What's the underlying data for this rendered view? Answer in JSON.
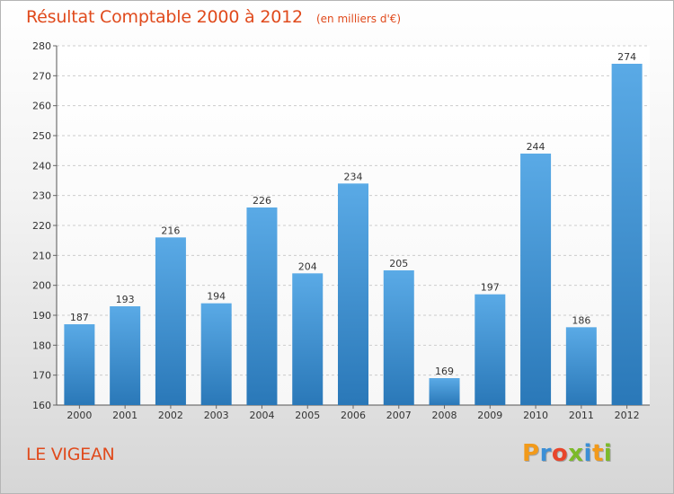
{
  "header": {
    "title": "Résultat Comptable 2000 à 2012",
    "subtitle": "(en milliers d'€)"
  },
  "footer": {
    "commune": "LE VIGEAN",
    "logo_text": "Proxiti",
    "logo_letters": [
      {
        "char": "P",
        "color": "#f29a1a"
      },
      {
        "char": "r",
        "color": "#3b8fd6"
      },
      {
        "char": "o",
        "color": "#e8452b"
      },
      {
        "char": "x",
        "color": "#7cba2a"
      },
      {
        "char": "i",
        "color": "#3b8fd6"
      },
      {
        "char": "t",
        "color": "#f29a1a"
      },
      {
        "char": "i",
        "color": "#7cba2a"
      }
    ]
  },
  "colors": {
    "accent": "#e04a1c",
    "bar_top": "#5aaae6",
    "bar_bottom": "#2a78b8",
    "grid": "#cccccc"
  },
  "chart_data": {
    "type": "bar",
    "title": "Résultat Comptable 2000 à 2012",
    "subtitle": "(en milliers d'€)",
    "xlabel": "",
    "ylabel": "",
    "categories": [
      "2000",
      "2001",
      "2002",
      "2003",
      "2004",
      "2005",
      "2006",
      "2007",
      "2008",
      "2009",
      "2010",
      "2011",
      "2012"
    ],
    "values": [
      187,
      193,
      216,
      194,
      226,
      204,
      234,
      205,
      169,
      197,
      244,
      186,
      274
    ],
    "ylim": [
      160,
      280
    ],
    "yticks": [
      160,
      170,
      180,
      190,
      200,
      210,
      220,
      230,
      240,
      250,
      260,
      270,
      280
    ],
    "grid": true,
    "data_labels": true
  }
}
